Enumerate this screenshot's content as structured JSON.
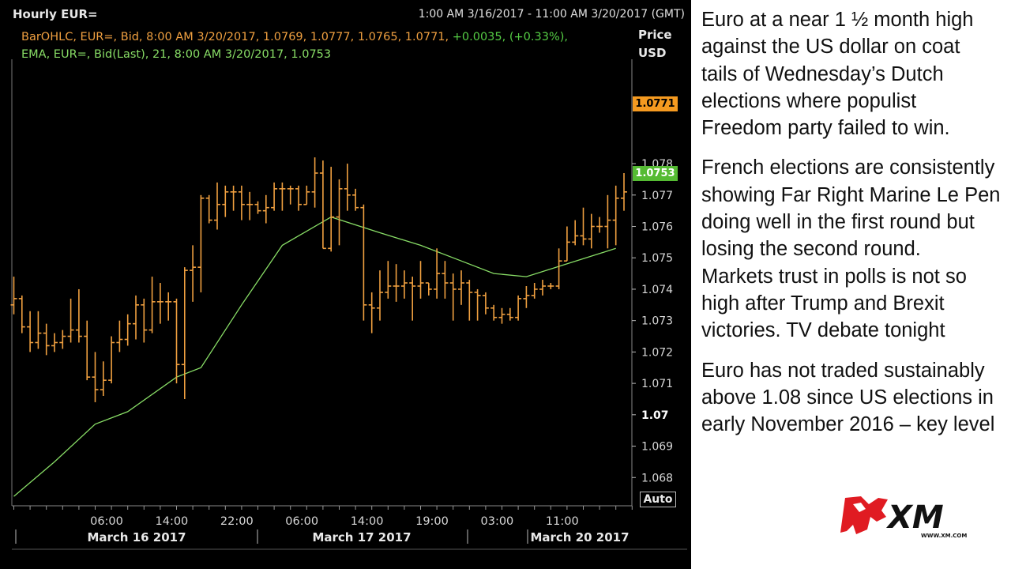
{
  "chart_title": "Hourly EUR=",
  "date_range": "1:00 AM 3/16/2017 - 11:00 AM 3/20/2017 (GMT)",
  "legend": {
    "ohlc_prefix": "BarOHLC, EUR=, Bid, 8:00 AM 3/20/2017, 1.0769, 1.0777, 1.0765, 1.0771,",
    "ohlc_change": "+0.0035, (+0.33%),",
    "ema": "EMA, EUR=, Bid(Last),  21,  8:00 AM 3/20/2017, 1.0753"
  },
  "axis_header": {
    "line1": "Price",
    "line2": "USD"
  },
  "last_price_label": "1.0771",
  "ema_price_label": "1.0753",
  "auto_label": "Auto",
  "colors": {
    "bars": "#f0a040",
    "ema": "#88dd66",
    "background": "#000000",
    "last_price": "#f59a20",
    "ema_badge": "#55bb33"
  },
  "chart_data": {
    "type": "ohlc",
    "ylim": [
      1.0671,
      1.0812
    ],
    "ytick_labels": [
      "1.078",
      "1.077",
      "1.076",
      "1.075",
      "1.074",
      "1.073",
      "1.072",
      "1.071",
      "1.07",
      "1.069",
      "1.068"
    ],
    "ytick_values": [
      1.078,
      1.077,
      1.076,
      1.075,
      1.074,
      1.073,
      1.072,
      1.071,
      1.07,
      1.069,
      1.068
    ],
    "xtick_labels": [
      "06:00",
      "14:00",
      "22:00",
      "06:00",
      "14:00",
      "19:00",
      "03:00",
      "11:00"
    ],
    "xtick_bar_index": [
      5,
      13,
      21,
      29,
      37,
      45,
      53,
      61
    ],
    "date_labels": [
      {
        "label": "March 16 2017",
        "bar_index": 12
      },
      {
        "label": "March 17 2017",
        "bar_index": 35
      },
      {
        "label": "March 20 2017",
        "bar_index": 58
      }
    ],
    "date_separators_bar_index": [
      0,
      24,
      47,
      53
    ],
    "bars": [
      {
        "t": "3/16 01:00",
        "o": 1.0735,
        "h": 1.0744,
        "l": 1.0732,
        "c": 1.0737
      },
      {
        "t": "3/16 02:00",
        "o": 1.0737,
        "h": 1.0738,
        "l": 1.0726,
        "c": 1.0728
      },
      {
        "t": "3/16 03:00",
        "o": 1.0728,
        "h": 1.0733,
        "l": 1.072,
        "c": 1.0723
      },
      {
        "t": "3/16 04:00",
        "o": 1.0723,
        "h": 1.0733,
        "l": 1.0721,
        "c": 1.0726
      },
      {
        "t": "3/16 05:00",
        "o": 1.0726,
        "h": 1.0729,
        "l": 1.0719,
        "c": 1.0722
      },
      {
        "t": "3/16 06:00",
        "o": 1.0722,
        "h": 1.0726,
        "l": 1.072,
        "c": 1.0723
      },
      {
        "t": "3/16 07:00",
        "o": 1.0723,
        "h": 1.0727,
        "l": 1.0721,
        "c": 1.0725
      },
      {
        "t": "3/16 08:00",
        "o": 1.0725,
        "h": 1.0737,
        "l": 1.0723,
        "c": 1.0727
      },
      {
        "t": "3/16 09:00",
        "o": 1.0727,
        "h": 1.074,
        "l": 1.0723,
        "c": 1.0725
      },
      {
        "t": "3/16 10:00",
        "o": 1.0725,
        "h": 1.073,
        "l": 1.0711,
        "c": 1.0712
      },
      {
        "t": "3/16 11:00",
        "o": 1.0712,
        "h": 1.072,
        "l": 1.0704,
        "c": 1.0708
      },
      {
        "t": "3/16 12:00",
        "o": 1.0708,
        "h": 1.0717,
        "l": 1.0706,
        "c": 1.0711
      },
      {
        "t": "3/16 13:00",
        "o": 1.0711,
        "h": 1.0725,
        "l": 1.071,
        "c": 1.0723
      },
      {
        "t": "3/16 14:00",
        "o": 1.0723,
        "h": 1.073,
        "l": 1.072,
        "c": 1.0724
      },
      {
        "t": "3/16 15:00",
        "o": 1.0724,
        "h": 1.0732,
        "l": 1.0722,
        "c": 1.0729
      },
      {
        "t": "3/16 16:00",
        "o": 1.0729,
        "h": 1.0738,
        "l": 1.0724,
        "c": 1.0735
      },
      {
        "t": "3/16 17:00",
        "o": 1.0735,
        "h": 1.0737,
        "l": 1.0723,
        "c": 1.0727
      },
      {
        "t": "3/16 18:00",
        "o": 1.0727,
        "h": 1.0744,
        "l": 1.0726,
        "c": 1.0736
      },
      {
        "t": "3/16 19:00",
        "o": 1.0736,
        "h": 1.0742,
        "l": 1.0729,
        "c": 1.0736
      },
      {
        "t": "3/16 20:00",
        "o": 1.0736,
        "h": 1.0739,
        "l": 1.073,
        "c": 1.0736
      },
      {
        "t": "3/16 21:00",
        "o": 1.0736,
        "h": 1.0737,
        "l": 1.071,
        "c": 1.0716
      },
      {
        "t": "3/16 22:00",
        "o": 1.0716,
        "h": 1.0747,
        "l": 1.0705,
        "c": 1.0746
      },
      {
        "t": "3/16 23:00",
        "o": 1.0746,
        "h": 1.0754,
        "l": 1.0736,
        "c": 1.0747
      },
      {
        "t": "3/17 00:00",
        "o": 1.0747,
        "h": 1.077,
        "l": 1.0739,
        "c": 1.0769
      },
      {
        "t": "3/17 01:00",
        "o": 1.0769,
        "h": 1.077,
        "l": 1.0761,
        "c": 1.0762
      },
      {
        "t": "3/17 02:00",
        "o": 1.0762,
        "h": 1.0774,
        "l": 1.0759,
        "c": 1.0767
      },
      {
        "t": "3/17 03:00",
        "o": 1.0767,
        "h": 1.0773,
        "l": 1.0763,
        "c": 1.0771
      },
      {
        "t": "3/17 04:00",
        "o": 1.0771,
        "h": 1.0773,
        "l": 1.0765,
        "c": 1.0771
      },
      {
        "t": "3/17 05:00",
        "o": 1.0771,
        "h": 1.0773,
        "l": 1.0762,
        "c": 1.0767
      },
      {
        "t": "3/17 06:00",
        "o": 1.0767,
        "h": 1.0771,
        "l": 1.0762,
        "c": 1.0767
      },
      {
        "t": "3/17 07:00",
        "o": 1.0767,
        "h": 1.0768,
        "l": 1.0764,
        "c": 1.0765
      },
      {
        "t": "3/17 08:00",
        "o": 1.0765,
        "h": 1.077,
        "l": 1.0761,
        "c": 1.0766
      },
      {
        "t": "3/17 09:00",
        "o": 1.0766,
        "h": 1.0774,
        "l": 1.0765,
        "c": 1.0772
      },
      {
        "t": "3/17 10:00",
        "o": 1.0772,
        "h": 1.0774,
        "l": 1.0765,
        "c": 1.0772
      },
      {
        "t": "3/17 11:00",
        "o": 1.0772,
        "h": 1.0773,
        "l": 1.0767,
        "c": 1.0772
      },
      {
        "t": "3/17 12:00",
        "o": 1.0772,
        "h": 1.0773,
        "l": 1.0765,
        "c": 1.0767
      },
      {
        "t": "3/17 13:00",
        "o": 1.0767,
        "h": 1.0773,
        "l": 1.0767,
        "c": 1.0771
      },
      {
        "t": "3/17 14:00",
        "o": 1.0771,
        "h": 1.0782,
        "l": 1.0766,
        "c": 1.0777
      },
      {
        "t": "3/17 15:00",
        "o": 1.0777,
        "h": 1.0781,
        "l": 1.0753,
        "c": 1.0753
      },
      {
        "t": "3/17 16:00",
        "o": 1.0753,
        "h": 1.0779,
        "l": 1.0752,
        "c": 1.0763
      },
      {
        "t": "3/17 17:00",
        "o": 1.0763,
        "h": 1.0775,
        "l": 1.0754,
        "c": 1.0772
      },
      {
        "t": "3/17 18:00",
        "o": 1.0772,
        "h": 1.078,
        "l": 1.0765,
        "c": 1.077
      },
      {
        "t": "3/17 19:00",
        "o": 1.077,
        "h": 1.0772,
        "l": 1.0765,
        "c": 1.0766
      },
      {
        "t": "3/17 20:00",
        "o": 1.0766,
        "h": 1.0767,
        "l": 1.073,
        "c": 1.0735
      },
      {
        "t": "3/17 21:00",
        "o": 1.0735,
        "h": 1.0739,
        "l": 1.0726,
        "c": 1.0734
      },
      {
        "t": "3/17 22:00",
        "o": 1.0734,
        "h": 1.0746,
        "l": 1.073,
        "c": 1.0739
      },
      {
        "t": "3/17 23:00",
        "o": 1.0739,
        "h": 1.0749,
        "l": 1.0737,
        "c": 1.0741
      },
      {
        "t": "3/18 00:00",
        "o": 1.0741,
        "h": 1.0748,
        "l": 1.0736,
        "c": 1.0741
      },
      {
        "t": "3/18 01:00",
        "o": 1.0741,
        "h": 1.0746,
        "l": 1.0737,
        "c": 1.0742
      },
      {
        "t": "3/18 02:00",
        "o": 1.0742,
        "h": 1.0744,
        "l": 1.073,
        "c": 1.0741
      },
      {
        "t": "3/18 03:00",
        "o": 1.0741,
        "h": 1.0749,
        "l": 1.0737,
        "c": 1.0742
      },
      {
        "t": "3/18 04:00",
        "o": 1.0742,
        "h": 1.0742,
        "l": 1.0738,
        "c": 1.074
      },
      {
        "t": "3/18 05:00",
        "o": 1.074,
        "h": 1.0753,
        "l": 1.0737,
        "c": 1.0745
      },
      {
        "t": "3/18 06:00",
        "o": 1.0745,
        "h": 1.0749,
        "l": 1.0737,
        "c": 1.0742
      },
      {
        "t": "3/18 07:00",
        "o": 1.0742,
        "h": 1.0745,
        "l": 1.073,
        "c": 1.074
      },
      {
        "t": "3/18 08:00",
        "o": 1.074,
        "h": 1.0746,
        "l": 1.0735,
        "c": 1.0742
      },
      {
        "t": "3/18 09:00",
        "o": 1.0742,
        "h": 1.0743,
        "l": 1.073,
        "c": 1.0739
      },
      {
        "t": "3/18 10:00",
        "o": 1.0739,
        "h": 1.074,
        "l": 1.073,
        "c": 1.0738
      },
      {
        "t": "3/18 11:00",
        "o": 1.0738,
        "h": 1.0739,
        "l": 1.0732,
        "c": 1.0734
      },
      {
        "t": "3/18 12:00",
        "o": 1.0734,
        "h": 1.0735,
        "l": 1.073,
        "c": 1.0731
      },
      {
        "t": "3/18 13:00",
        "o": 1.0731,
        "h": 1.0734,
        "l": 1.0729,
        "c": 1.0732
      },
      {
        "t": "3/18 14:00",
        "o": 1.0732,
        "h": 1.0734,
        "l": 1.073,
        "c": 1.0731
      },
      {
        "t": "3/18 15:00",
        "o": 1.0731,
        "h": 1.0738,
        "l": 1.073,
        "c": 1.0737
      },
      {
        "t": "3/18 16:00",
        "o": 1.0737,
        "h": 1.0741,
        "l": 1.0734,
        "c": 1.0738
      },
      {
        "t": "3/18 17:00",
        "o": 1.0738,
        "h": 1.0742,
        "l": 1.0737,
        "c": 1.074
      },
      {
        "t": "3/18 18:00",
        "o": 1.074,
        "h": 1.0743,
        "l": 1.0738,
        "c": 1.0741
      },
      {
        "t": "3/18 19:00",
        "o": 1.0741,
        "h": 1.0742,
        "l": 1.074,
        "c": 1.0741
      },
      {
        "t": "3/20 00:00",
        "o": 1.0741,
        "h": 1.0753,
        "l": 1.074,
        "c": 1.0749
      },
      {
        "t": "3/20 01:00",
        "o": 1.0749,
        "h": 1.076,
        "l": 1.0749,
        "c": 1.0755
      },
      {
        "t": "3/20 02:00",
        "o": 1.0755,
        "h": 1.0762,
        "l": 1.0754,
        "c": 1.0757
      },
      {
        "t": "3/20 03:00",
        "o": 1.0757,
        "h": 1.0766,
        "l": 1.0754,
        "c": 1.0756
      },
      {
        "t": "3/20 04:00",
        "o": 1.0756,
        "h": 1.0764,
        "l": 1.0753,
        "c": 1.076
      },
      {
        "t": "3/20 05:00",
        "o": 1.076,
        "h": 1.0763,
        "l": 1.0758,
        "c": 1.076
      },
      {
        "t": "3/20 06:00",
        "o": 1.076,
        "h": 1.077,
        "l": 1.0753,
        "c": 1.0762
      },
      {
        "t": "3/20 07:00",
        "o": 1.0762,
        "h": 1.0773,
        "l": 1.0754,
        "c": 1.0769
      },
      {
        "t": "3/20 08:00",
        "o": 1.0769,
        "h": 1.0777,
        "l": 1.0765,
        "c": 1.0771
      }
    ],
    "ema": {
      "name": "EMA 21",
      "x_bar_index": [
        0,
        5,
        10,
        14,
        20,
        23,
        28,
        33,
        39,
        45,
        50,
        55,
        59,
        63,
        74
      ],
      "values": [
        1.0674,
        1.0685,
        1.0697,
        1.0701,
        1.0712,
        1.0715,
        1.0735,
        1.0754,
        1.0763,
        1.0758,
        1.0754,
        1.0749,
        1.0745,
        1.0744,
        1.0753
      ]
    }
  },
  "commentary": [
    [
      "Euro at a near 1 ½ month high",
      "against the US dollar on coat",
      "tails of Wednesday’s Dutch",
      "elections where populist",
      "Freedom party failed to win."
    ],
    [
      "French elections are consistently",
      "showing Far Right Marine Le Pen",
      "doing well in the first round but",
      "losing the second round.",
      "Markets trust in polls is not so",
      "high after Trump and Brexit",
      "victories. TV debate tonight"
    ],
    [
      "Euro has not traded sustainably",
      "above 1.08 since US elections in",
      "early November 2016 – key level"
    ]
  ],
  "logo": {
    "wordmark": "XM",
    "url_text": "WWW.XM.COM"
  }
}
